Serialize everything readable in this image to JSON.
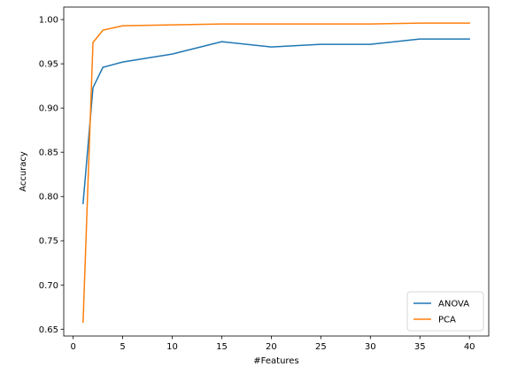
{
  "chart_data": {
    "type": "line",
    "title": "",
    "xlabel": "#Features",
    "ylabel": "Accuracy",
    "xlim": [
      -0.95,
      41.95
    ],
    "ylim": [
      0.6423,
      1.0141
    ],
    "xticks": [
      0,
      5,
      10,
      15,
      20,
      25,
      30,
      35,
      40
    ],
    "xtick_labels": [
      "0",
      "5",
      "10",
      "15",
      "20",
      "25",
      "30",
      "35",
      "40"
    ],
    "yticks": [
      0.65,
      0.7,
      0.75,
      0.8,
      0.85,
      0.9,
      0.95,
      1.0
    ],
    "ytick_labels": [
      "0.65",
      "0.70",
      "0.75",
      "0.80",
      "0.85",
      "0.90",
      "0.95",
      "1.00"
    ],
    "grid": false,
    "legend_position": "lower-right",
    "series": [
      {
        "name": "ANOVA",
        "color": "#1f77b4",
        "x": [
          1,
          2,
          3,
          5,
          10,
          15,
          20,
          25,
          30,
          35,
          40
        ],
        "y": [
          0.792,
          0.923,
          0.946,
          0.952,
          0.961,
          0.975,
          0.969,
          0.972,
          0.972,
          0.978,
          0.978
        ]
      },
      {
        "name": "PCA",
        "color": "#ff7f0e",
        "x": [
          1,
          2,
          3,
          5,
          10,
          15,
          20,
          25,
          30,
          35,
          40
        ],
        "y": [
          0.658,
          0.974,
          0.988,
          0.993,
          0.994,
          0.995,
          0.995,
          0.995,
          0.995,
          0.996,
          0.996
        ]
      }
    ]
  }
}
